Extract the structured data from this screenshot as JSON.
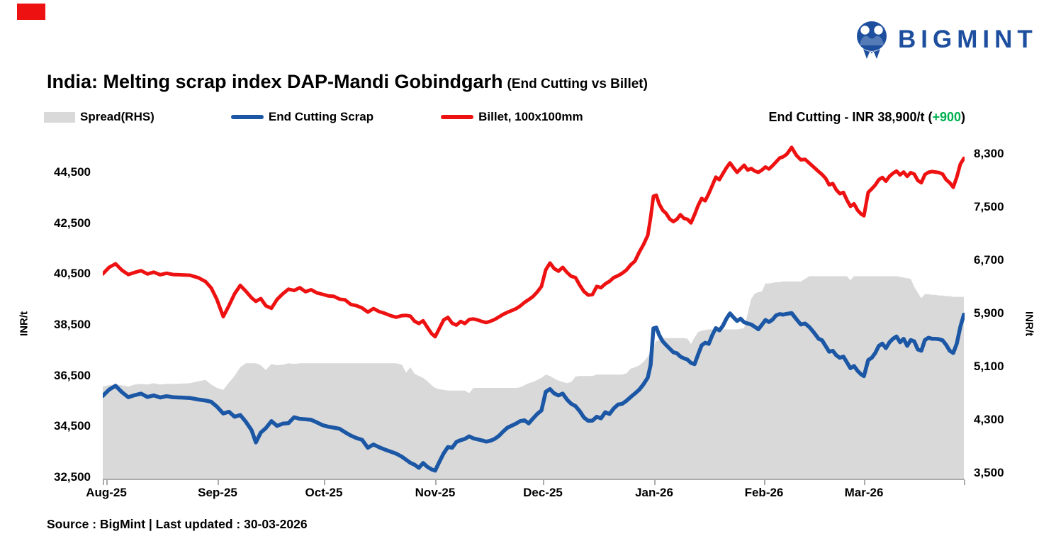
{
  "accent_bar_color": "#ee1111",
  "logo": {
    "brand": "BIGMINT",
    "color": "#1d4f9e"
  },
  "title": {
    "main": "India: Melting scrap index DAP-Mandi Gobindgarh",
    "sub": "(End Cutting vs Billet)"
  },
  "legend": [
    {
      "label": "Spread(RHS)",
      "color": "#d9d9d9",
      "type": "area"
    },
    {
      "label": "End Cutting Scrap",
      "color": "#1b57a5",
      "type": "line"
    },
    {
      "label": "Billet, 100x100mm",
      "color": "#ee1111",
      "type": "line"
    }
  ],
  "current_badge": {
    "prefix": "End Cutting - INR 38,900/t (",
    "change": "+900",
    "suffix": ")",
    "change_color": "#00b050"
  },
  "source": "Source : BigMint | Last updated : 30-03-2026",
  "chart_data": {
    "type": "line+area",
    "title": "India: Melting scrap index DAP-Mandi Gobindgarh (End Cutting vs Billet)",
    "grid": false,
    "legend_position": "top-left",
    "left_axis": {
      "title": "INR/t",
      "range": [
        32500,
        44500
      ],
      "ticks": [
        {
          "v": 44500,
          "label": "44,500"
        },
        {
          "v": 42500,
          "label": "42,500"
        },
        {
          "v": 40500,
          "label": "40,500"
        },
        {
          "v": 38500,
          "label": "38,500"
        },
        {
          "v": 36500,
          "label": "36,500"
        },
        {
          "v": 34500,
          "label": "34,500"
        },
        {
          "v": 32500,
          "label": "32,500"
        }
      ]
    },
    "right_axis": {
      "title": "INR/t",
      "range": [
        3500,
        8300
      ],
      "ticks": [
        {
          "v": 8300,
          "label": "8,300"
        },
        {
          "v": 7500,
          "label": "7,500"
        },
        {
          "v": 6700,
          "label": "6,700"
        },
        {
          "v": 5900,
          "label": "5,900"
        },
        {
          "v": 5100,
          "label": "5,100"
        },
        {
          "v": 4300,
          "label": "4,300"
        },
        {
          "v": 3500,
          "label": "3,500"
        }
      ]
    },
    "x_axis": {
      "t_min": 145,
      "t_max": 1360,
      "labels": [
        {
          "label": "Aug-25",
          "t": 150
        },
        {
          "label": "Sep-25",
          "t": 307
        },
        {
          "label": "Oct-25",
          "t": 457
        },
        {
          "label": "Nov-25",
          "t": 614
        },
        {
          "label": "Dec-25",
          "t": 766
        },
        {
          "label": "Jan-26",
          "t": 923
        },
        {
          "label": "Feb-26",
          "t": 1078
        },
        {
          "label": "Mar-26",
          "t": 1219
        }
      ]
    },
    "series": [
      {
        "name": "Spread(RHS)",
        "type": "area",
        "axis": "right",
        "color": "#d9d9d9"
      },
      {
        "name": "Billet, 100x100mm",
        "type": "line",
        "axis": "left",
        "color": "#ee1111",
        "stroke_width": 5
      },
      {
        "name": "End Cutting Scrap",
        "type": "line",
        "axis": "left",
        "color": "#1b57a5",
        "stroke_width": 5.5
      }
    ],
    "latest": {
      "end_cutting_scrap": 38900,
      "change": 900
    },
    "point_columns": [
      "t",
      "billet_100x100mm",
      "end_cutting_scrap",
      "spread_rhs"
    ],
    "points": [
      [
        145,
        40500,
        35700,
        4800
      ],
      [
        154,
        40760,
        35950,
        4820
      ],
      [
        163,
        40900,
        36100,
        4830
      ],
      [
        172,
        40650,
        35850,
        4820
      ],
      [
        181,
        40480,
        35650,
        4800
      ],
      [
        190,
        40560,
        35730,
        4830
      ],
      [
        199,
        40630,
        35790,
        4840
      ],
      [
        208,
        40500,
        35660,
        4830
      ],
      [
        217,
        40570,
        35720,
        4850
      ],
      [
        226,
        40470,
        35640,
        4830
      ],
      [
        235,
        40530,
        35690,
        4840
      ],
      [
        244,
        40480,
        35650,
        4840
      ],
      [
        268,
        40450,
        35620,
        4850
      ],
      [
        280,
        40350,
        35560,
        4880
      ],
      [
        290,
        40200,
        35520,
        4900
      ],
      [
        298,
        39950,
        35470,
        4830
      ],
      [
        306,
        39500,
        35280,
        4780
      ],
      [
        315,
        38820,
        35010,
        4750
      ],
      [
        323,
        39250,
        35080,
        4860
      ],
      [
        331,
        39720,
        34880,
        4960
      ],
      [
        339,
        40050,
        34950,
        5090
      ],
      [
        347,
        39820,
        34680,
        5150
      ],
      [
        355,
        39560,
        34350,
        5150
      ],
      [
        361,
        39420,
        33870,
        5150
      ],
      [
        368,
        39530,
        34260,
        5120
      ],
      [
        375,
        39250,
        34430,
        5050
      ],
      [
        383,
        39150,
        34710,
        5140
      ],
      [
        391,
        39500,
        34520,
        5120
      ],
      [
        399,
        39720,
        34610,
        5130
      ],
      [
        407,
        39900,
        34630,
        5150
      ],
      [
        415,
        39850,
        34860,
        5140
      ],
      [
        423,
        39960,
        34800,
        5150
      ],
      [
        431,
        39800,
        34780,
        5150
      ],
      [
        439,
        39880,
        34760,
        5150
      ],
      [
        447,
        39760,
        34660,
        5150
      ],
      [
        455,
        39700,
        34550,
        5150
      ],
      [
        463,
        39640,
        34490,
        5150
      ],
      [
        471,
        39620,
        34450,
        5150
      ],
      [
        479,
        39510,
        34410,
        5150
      ],
      [
        487,
        39480,
        34270,
        5150
      ],
      [
        495,
        39300,
        34140,
        5150
      ],
      [
        503,
        39250,
        34040,
        5150
      ],
      [
        511,
        39160,
        33970,
        5150
      ],
      [
        519,
        39000,
        33660,
        5150
      ],
      [
        527,
        39140,
        33790,
        5150
      ],
      [
        535,
        39020,
        33680,
        5150
      ],
      [
        543,
        38950,
        33590,
        5150
      ],
      [
        551,
        38860,
        33510,
        5150
      ],
      [
        559,
        38800,
        33430,
        5150
      ],
      [
        567,
        38860,
        33310,
        5130
      ],
      [
        573,
        38870,
        33190,
        5010
      ],
      [
        579,
        38840,
        33070,
        5090
      ],
      [
        585,
        38640,
        32990,
        4990
      ],
      [
        591,
        38550,
        32870,
        4960
      ],
      [
        597,
        38660,
        33060,
        4930
      ],
      [
        603,
        38400,
        32910,
        4880
      ],
      [
        609,
        38150,
        32810,
        4820
      ],
      [
        614,
        38030,
        32760,
        4780
      ],
      [
        620,
        38360,
        33110,
        4760
      ],
      [
        626,
        38690,
        33440,
        4750
      ],
      [
        632,
        38790,
        33690,
        4740
      ],
      [
        638,
        38560,
        33660,
        4740
      ],
      [
        644,
        38490,
        33890,
        4740
      ],
      [
        650,
        38630,
        33960,
        4740
      ],
      [
        656,
        38550,
        34010,
        4740
      ],
      [
        662,
        38710,
        34110,
        4700
      ],
      [
        668,
        38730,
        34030,
        4780
      ],
      [
        674,
        38690,
        33990,
        4780
      ],
      [
        680,
        38630,
        33950,
        4780
      ],
      [
        686,
        38590,
        33900,
        4780
      ],
      [
        692,
        38640,
        33940,
        4780
      ],
      [
        698,
        38710,
        34010,
        4780
      ],
      [
        704,
        38810,
        34130,
        4780
      ],
      [
        710,
        38910,
        34300,
        4780
      ],
      [
        716,
        38990,
        34450,
        4780
      ],
      [
        722,
        39060,
        34530,
        4780
      ],
      [
        728,
        39130,
        34610,
        4780
      ],
      [
        734,
        39240,
        34710,
        4790
      ],
      [
        740,
        39380,
        34740,
        4820
      ],
      [
        746,
        39490,
        34620,
        4850
      ],
      [
        752,
        39610,
        34810,
        4870
      ],
      [
        758,
        39790,
        34990,
        4900
      ],
      [
        764,
        40010,
        35130,
        4930
      ],
      [
        770,
        40660,
        35860,
        4980
      ],
      [
        776,
        40930,
        35970,
        4960
      ],
      [
        782,
        40710,
        35800,
        4920
      ],
      [
        788,
        40610,
        35720,
        4890
      ],
      [
        794,
        40760,
        35790,
        4870
      ],
      [
        800,
        40560,
        35560,
        4850
      ],
      [
        806,
        40410,
        35390,
        4870
      ],
      [
        812,
        40360,
        35300,
        4950
      ],
      [
        818,
        40060,
        35100,
        4960
      ],
      [
        824,
        39810,
        34850,
        4960
      ],
      [
        830,
        39670,
        34720,
        4960
      ],
      [
        836,
        39690,
        34730,
        4960
      ],
      [
        842,
        40010,
        34880,
        4980
      ],
      [
        848,
        39960,
        34820,
        4980
      ],
      [
        854,
        40110,
        35060,
        4980
      ],
      [
        860,
        40210,
        34990,
        4980
      ],
      [
        866,
        40360,
        35210,
        4980
      ],
      [
        872,
        40430,
        35360,
        4980
      ],
      [
        878,
        40530,
        35390,
        4980
      ],
      [
        884,
        40660,
        35510,
        5000
      ],
      [
        890,
        40860,
        35660,
        5070
      ],
      [
        896,
        41010,
        35800,
        5090
      ],
      [
        902,
        41360,
        35950,
        5120
      ],
      [
        908,
        41660,
        36160,
        5170
      ],
      [
        914,
        42020,
        36420,
        5250
      ],
      [
        918,
        42720,
        36920,
        5330
      ],
      [
        922,
        43560,
        38360,
        5420
      ],
      [
        926,
        43600,
        38390,
        5480
      ],
      [
        930,
        43260,
        38100,
        5510
      ],
      [
        935,
        43010,
        37850,
        5530
      ],
      [
        940,
        42880,
        37700,
        5530
      ],
      [
        945,
        42660,
        37560,
        5530
      ],
      [
        950,
        42560,
        37420,
        5530
      ],
      [
        955,
        42650,
        37380,
        5530
      ],
      [
        960,
        42830,
        37250,
        5530
      ],
      [
        965,
        42690,
        37180,
        5530
      ],
      [
        970,
        42650,
        37130,
        5520
      ],
      [
        975,
        42510,
        37000,
        5440
      ],
      [
        980,
        42830,
        36950,
        5540
      ],
      [
        985,
        43190,
        37330,
        5620
      ],
      [
        990,
        43470,
        37690,
        5640
      ],
      [
        995,
        43380,
        37790,
        5650
      ],
      [
        1000,
        43660,
        37750,
        5660
      ],
      [
        1005,
        43980,
        38090,
        5660
      ],
      [
        1010,
        44310,
        38370,
        5660
      ],
      [
        1015,
        44210,
        38280,
        5660
      ],
      [
        1020,
        44450,
        38460,
        5660
      ],
      [
        1025,
        44680,
        38740,
        5660
      ],
      [
        1030,
        44870,
        38950,
        5660
      ],
      [
        1035,
        44680,
        38790,
        5660
      ],
      [
        1040,
        44500,
        38650,
        5660
      ],
      [
        1045,
        44640,
        38740,
        5670
      ],
      [
        1050,
        44780,
        38600,
        5680
      ],
      [
        1055,
        44590,
        38550,
        5900
      ],
      [
        1060,
        44650,
        38510,
        6120
      ],
      [
        1065,
        44550,
        38420,
        6200
      ],
      [
        1070,
        44500,
        38320,
        6220
      ],
      [
        1075,
        44590,
        38500,
        6230
      ],
      [
        1080,
        44710,
        38690,
        6350
      ],
      [
        1085,
        44630,
        38610,
        6350
      ],
      [
        1090,
        44760,
        38700,
        6360
      ],
      [
        1095,
        44910,
        38870,
        6370
      ],
      [
        1100,
        45060,
        38920,
        6370
      ],
      [
        1105,
        45110,
        38900,
        6380
      ],
      [
        1110,
        45210,
        38930,
        6380
      ],
      [
        1117,
        45480,
        38960,
        6380
      ],
      [
        1124,
        45160,
        38710,
        6380
      ],
      [
        1130,
        44990,
        38510,
        6380
      ],
      [
        1136,
        45010,
        38550,
        6420
      ],
      [
        1142,
        44860,
        38410,
        6460
      ],
      [
        1148,
        44710,
        38210,
        6460
      ],
      [
        1155,
        44530,
        37950,
        6460
      ],
      [
        1160,
        44410,
        37890,
        6460
      ],
      [
        1165,
        44260,
        37660,
        6460
      ],
      [
        1170,
        44010,
        37440,
        6460
      ],
      [
        1175,
        44060,
        37480,
        6460
      ],
      [
        1180,
        43810,
        37300,
        6460
      ],
      [
        1185,
        43660,
        37200,
        6460
      ],
      [
        1190,
        43710,
        37250,
        6460
      ],
      [
        1195,
        43410,
        37020,
        6460
      ],
      [
        1200,
        43160,
        36790,
        6400
      ],
      [
        1205,
        43260,
        36880,
        6460
      ],
      [
        1210,
        43010,
        36690,
        6460
      ],
      [
        1215,
        42860,
        36550,
        6460
      ],
      [
        1219,
        42790,
        36480,
        6460
      ],
      [
        1225,
        43710,
        37110,
        6460
      ],
      [
        1230,
        43850,
        37200,
        6460
      ],
      [
        1235,
        44000,
        37390,
        6460
      ],
      [
        1240,
        44210,
        37670,
        6460
      ],
      [
        1245,
        44300,
        37760,
        6460
      ],
      [
        1250,
        44150,
        37580,
        6460
      ],
      [
        1255,
        44340,
        37810,
        6460
      ],
      [
        1260,
        44460,
        37950,
        6460
      ],
      [
        1265,
        44550,
        38040,
        6460
      ],
      [
        1270,
        44400,
        37810,
        6450
      ],
      [
        1275,
        44510,
        37950,
        6440
      ],
      [
        1280,
        44340,
        37670,
        6430
      ],
      [
        1285,
        44490,
        37900,
        6420
      ],
      [
        1290,
        44430,
        37850,
        6300
      ],
      [
        1295,
        44180,
        37530,
        6210
      ],
      [
        1300,
        44090,
        37480,
        6130
      ],
      [
        1305,
        44410,
        37900,
        6190
      ],
      [
        1310,
        44500,
        37990,
        6190
      ],
      [
        1315,
        44530,
        37950,
        6180
      ],
      [
        1320,
        44510,
        37950,
        6180
      ],
      [
        1325,
        44490,
        37930,
        6170
      ],
      [
        1330,
        44430,
        37890,
        6170
      ],
      [
        1335,
        44210,
        37710,
        6160
      ],
      [
        1340,
        44090,
        37480,
        6160
      ],
      [
        1345,
        43910,
        37390,
        6150
      ],
      [
        1350,
        44310,
        37760,
        6150
      ],
      [
        1355,
        44820,
        38420,
        6150
      ],
      [
        1360,
        45050,
        38900,
        6150
      ]
    ]
  }
}
